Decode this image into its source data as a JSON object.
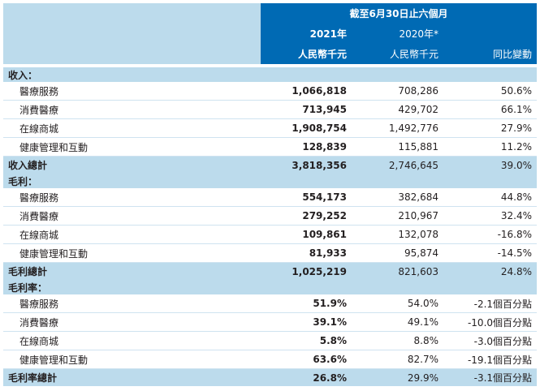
{
  "header": {
    "period": "截至6月30日止六個月",
    "year_2021": "2021年",
    "year_2020": "2020年*",
    "unit_2021": "人民幣千元",
    "unit_2020": "人民幣千元",
    "yoy": "同比變動"
  },
  "revenue": {
    "title": "收入：",
    "rows": [
      {
        "label": "醫療服務",
        "v2021": "1,066,818",
        "v2020": "708,286",
        "yoy": "50.6%"
      },
      {
        "label": "消費醫療",
        "v2021": "713,945",
        "v2020": "429,702",
        "yoy": "66.1%"
      },
      {
        "label": "在線商城",
        "v2021": "1,908,754",
        "v2020": "1,492,776",
        "yoy": "27.9%"
      },
      {
        "label": "健康管理和互動",
        "v2021": "128,839",
        "v2020": "115,881",
        "yoy": "11.2%"
      }
    ],
    "total": {
      "label": "收入總計",
      "v2021": "3,818,356",
      "v2020": "2,746,645",
      "yoy": "39.0%"
    }
  },
  "gross_profit": {
    "title": "毛利：",
    "rows": [
      {
        "label": "醫療服務",
        "v2021": "554,173",
        "v2020": "382,684",
        "yoy": "44.8%"
      },
      {
        "label": "消費醫療",
        "v2021": "279,252",
        "v2020": "210,967",
        "yoy": "32.4%"
      },
      {
        "label": "在線商城",
        "v2021": "109,861",
        "v2020": "132,078",
        "yoy": "-16.8%"
      },
      {
        "label": "健康管理和互動",
        "v2021": "81,933",
        "v2020": "95,874",
        "yoy": "-14.5%"
      }
    ],
    "total": {
      "label": "毛利總計",
      "v2021": "1,025,219",
      "v2020": "821,603",
      "yoy": "24.8%"
    }
  },
  "gross_margin": {
    "title": "毛利率：",
    "rows": [
      {
        "label": "醫療服務",
        "v2021": "51.9%",
        "v2020": "54.0%",
        "yoy": "-2.1個百分點"
      },
      {
        "label": "消費醫療",
        "v2021": "39.1%",
        "v2020": "49.1%",
        "yoy": "-10.0個百分點"
      },
      {
        "label": "在線商城",
        "v2021": "5.8%",
        "v2020": "8.8%",
        "yoy": "-3.0個百分點"
      },
      {
        "label": "健康管理和互動",
        "v2021": "63.6%",
        "v2020": "82.7%",
        "yoy": "-19.1個百分點"
      }
    ],
    "total": {
      "label": "毛利率總計",
      "v2021": "26.8%",
      "v2020": "29.9%",
      "yoy": "-3.1個百分點"
    }
  }
}
